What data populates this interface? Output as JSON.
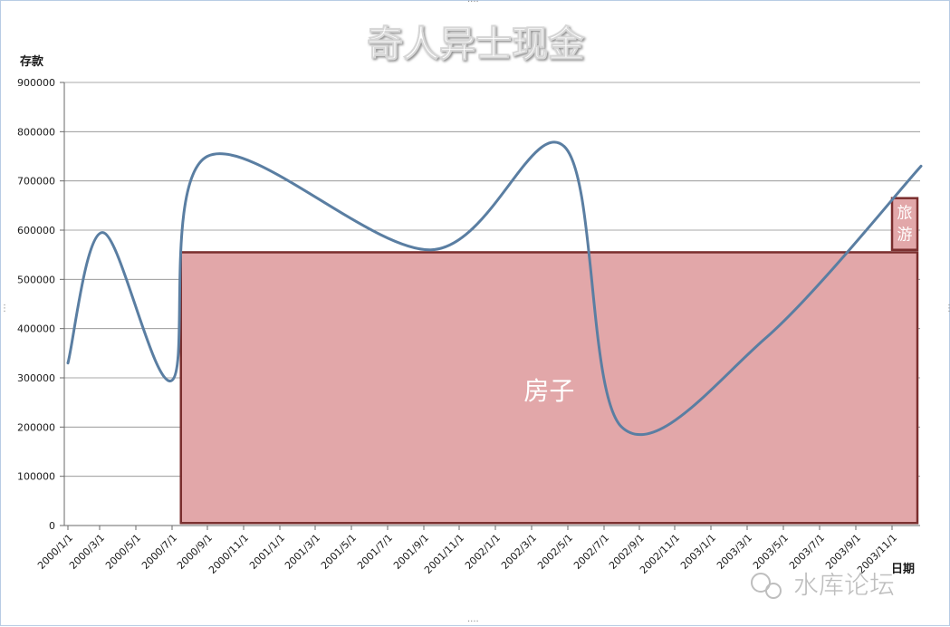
{
  "chart_data": {
    "type": "line",
    "title": "奇人异士现金",
    "ylabel": "存款",
    "xlabel": "日期",
    "ylim": [
      0,
      900000
    ],
    "y_ticks": [
      "0",
      "100000",
      "200000",
      "300000",
      "400000",
      "500000",
      "600000",
      "700000",
      "800000",
      "900000"
    ],
    "x_ticks": [
      "2000/1/1",
      "2000/3/1",
      "2000/5/1",
      "2000/7/1",
      "2000/9/1",
      "2000/11/1",
      "2001/1/1",
      "2001/3/1",
      "2001/5/1",
      "2001/7/1",
      "2001/9/1",
      "2001/11/1",
      "2002/1/1",
      "2002/3/1",
      "2002/5/1",
      "2002/7/1",
      "2002/9/1",
      "2002/11/1",
      "2003/1/1",
      "2003/3/1",
      "2003/5/1",
      "2003/7/1",
      "2003/9/1",
      "2003/11/1"
    ],
    "series": [
      {
        "name": "存款",
        "color": "#5a7ea2",
        "points": [
          {
            "x": 0.0,
            "y": 330000
          },
          {
            "x": 1.1,
            "y": 595000
          },
          {
            "x": 3.0,
            "y": 295000
          },
          {
            "x": 4.0,
            "y": 750000
          },
          {
            "x": 10.2,
            "y": 560000
          },
          {
            "x": 13.9,
            "y": 770000
          },
          {
            "x": 15.5,
            "y": 200000
          },
          {
            "x": 19.5,
            "y": 380000
          },
          {
            "x": 23.8,
            "y": 730000
          }
        ]
      }
    ],
    "annotations": [
      {
        "label": "房子",
        "x_start": 3.25,
        "x_end": 23.7,
        "y_bottom": 5000,
        "y_top": 555000,
        "fill": "#e2a7a9",
        "border": "#7a2e2e"
      },
      {
        "label": "旅游",
        "x_start": 23.0,
        "x_end": 23.7,
        "y_bottom": 560000,
        "y_top": 665000,
        "fill": "#e2a7a9",
        "border": "#7a2e2e"
      }
    ]
  },
  "watermark": {
    "text": "水库论坛"
  }
}
